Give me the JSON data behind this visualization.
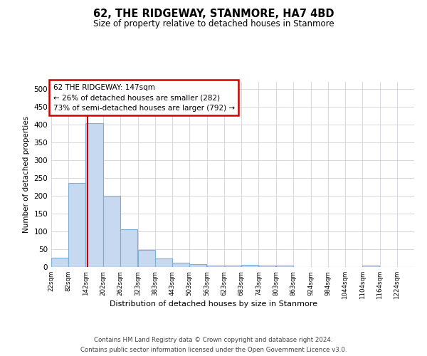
{
  "title": "62, THE RIDGEWAY, STANMORE, HA7 4BD",
  "subtitle": "Size of property relative to detached houses in Stanmore",
  "xlabel": "Distribution of detached houses by size in Stanmore",
  "ylabel": "Number of detached properties",
  "bar_color": "#c6d9f0",
  "bar_edge_color": "#7bafd4",
  "marker_color": "#cc0000",
  "marker_value": 147,
  "annotation_text": "62 THE RIDGEWAY: 147sqm\n← 26% of detached houses are smaller (282)\n73% of semi-detached houses are larger (792) →",
  "footer_line1": "Contains HM Land Registry data © Crown copyright and database right 2024.",
  "footer_line2": "Contains public sector information licensed under the Open Government Licence v3.0.",
  "bins": [
    22,
    82,
    142,
    202,
    262,
    323,
    383,
    443,
    503,
    563,
    623,
    683,
    743,
    803,
    863,
    924,
    984,
    1044,
    1104,
    1164,
    1224
  ],
  "bin_labels": [
    "22sqm",
    "82sqm",
    "142sqm",
    "202sqm",
    "262sqm",
    "323sqm",
    "383sqm",
    "443sqm",
    "503sqm",
    "563sqm",
    "623sqm",
    "683sqm",
    "743sqm",
    "803sqm",
    "863sqm",
    "924sqm",
    "984sqm",
    "1044sqm",
    "1104sqm",
    "1164sqm",
    "1224sqm"
  ],
  "counts": [
    27,
    237,
    405,
    200,
    106,
    49,
    25,
    12,
    8,
    5,
    5,
    7,
    5,
    5,
    0,
    0,
    0,
    0,
    5,
    0,
    0
  ],
  "ylim": [
    0,
    520
  ],
  "yticks": [
    0,
    50,
    100,
    150,
    200,
    250,
    300,
    350,
    400,
    450,
    500
  ],
  "background_color": "#ffffff",
  "grid_color": "#d0d0d8"
}
